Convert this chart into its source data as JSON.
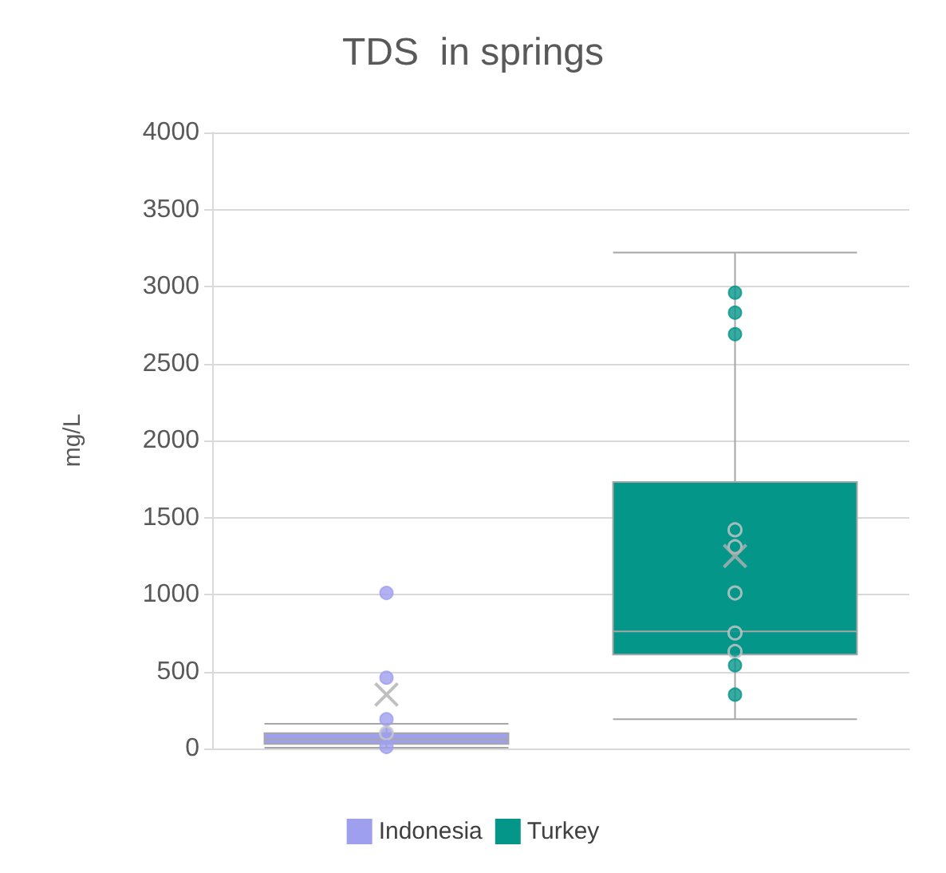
{
  "chart_data": {
    "type": "box",
    "title": "TDS  in springs",
    "ylabel": "mg/L",
    "categories": [
      null
    ],
    "series": [
      {
        "name": "Indonesia",
        "color": "#9f9fef",
        "boxes": [
          {
            "low": 5,
            "q1": 30,
            "median": 60,
            "q3": 100,
            "high": 160,
            "mean": 350,
            "outliers": [
              1010,
              460,
              190,
              100,
              10
            ]
          }
        ]
      },
      {
        "name": "Turkey",
        "color": "#05968a",
        "boxes": [
          {
            "low": 190,
            "q1": 610,
            "median": 760,
            "q3": 1730,
            "high": 3220,
            "mean": 1250,
            "outliers": [
              2960,
              2830,
              2690,
              1420,
              1310,
              1010,
              750,
              630,
              540,
              350
            ]
          }
        ]
      }
    ],
    "ylim": [
      0,
      4000
    ],
    "yticks": [
      0,
      500,
      1000,
      1500,
      2000,
      2500,
      3000,
      3500,
      4000
    ],
    "grid": "y",
    "legend": "bottom"
  }
}
